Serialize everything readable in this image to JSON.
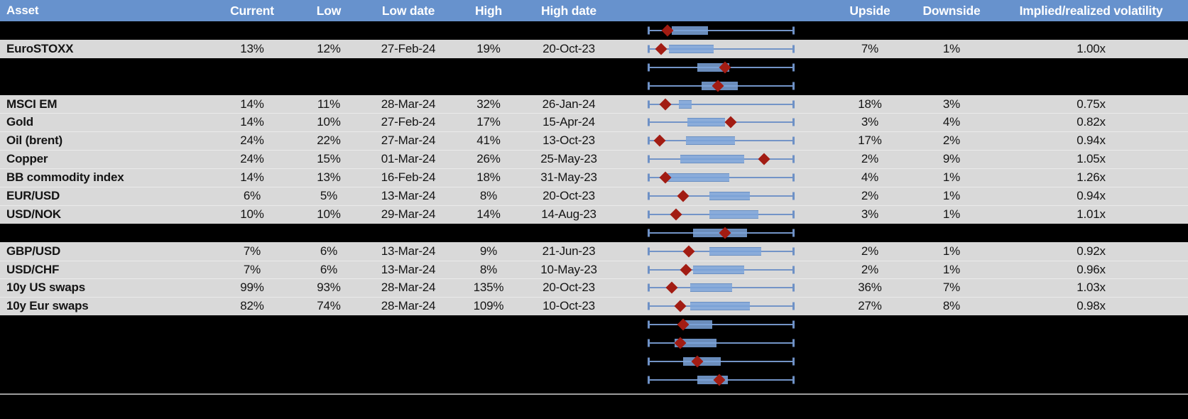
{
  "header": {
    "columns": [
      "Asset",
      "Current",
      "Low",
      "Low date",
      "High",
      "High date",
      "",
      "Upside",
      "Downside",
      "Implied/realized volatility"
    ]
  },
  "colors": {
    "header_bg": "#6792cd",
    "header_text": "#ffffff",
    "row_gray": "#d9d9d9",
    "row_black": "#000000",
    "whisker_blue": "#7394c7",
    "box_blue": "#7da4da",
    "marker_red": "#a21c13",
    "bottom_line": "#9c9c9c"
  },
  "chart_data": {
    "type": "table",
    "note": "Each row contains a horizontal box-and-whisker plot normalized to the 1-year range (whiskers always span full range 0-1); box = inner range, diamond marker = current level.",
    "plot_axis_range": [
      0,
      1
    ]
  },
  "rows": [
    {
      "type": "spacer",
      "plot": {
        "whisker_lo": 0,
        "whisker_hi": 1,
        "box_lo": 0.16,
        "box_hi": 0.41,
        "marker": 0.13
      }
    },
    {
      "type": "data",
      "asset": "EuroSTOXX",
      "current": "13%",
      "low": "12%",
      "low_date": "27-Feb-24",
      "high": "19%",
      "high_date": "20-Oct-23",
      "upside": "7%",
      "downside": "1%",
      "implied_realized": "1.00x",
      "plot": {
        "whisker_lo": 0,
        "whisker_hi": 1,
        "box_lo": 0.14,
        "box_hi": 0.45,
        "marker": 0.09
      }
    },
    {
      "type": "spacer",
      "plot": {
        "whisker_lo": 0,
        "whisker_hi": 1,
        "box_lo": 0.34,
        "box_hi": 0.56,
        "marker": 0.53
      }
    },
    {
      "type": "spacer",
      "plot": {
        "whisker_lo": 0,
        "whisker_hi": 1,
        "box_lo": 0.37,
        "box_hi": 0.62,
        "marker": 0.48
      }
    },
    {
      "type": "data",
      "asset": "MSCI EM",
      "current": "14%",
      "low": "11%",
      "low_date": "28-Mar-24",
      "high": "32%",
      "high_date": "26-Jan-24",
      "upside": "18%",
      "downside": "3%",
      "implied_realized": "0.75x",
      "plot": {
        "whisker_lo": 0,
        "whisker_hi": 1,
        "box_lo": 0.21,
        "box_hi": 0.3,
        "marker": 0.12
      }
    },
    {
      "type": "data",
      "asset": "Gold",
      "current": "14%",
      "low": "10%",
      "low_date": "27-Feb-24",
      "high": "17%",
      "high_date": "15-Apr-24",
      "upside": "3%",
      "downside": "4%",
      "implied_realized": "0.82x",
      "plot": {
        "whisker_lo": 0,
        "whisker_hi": 1,
        "box_lo": 0.27,
        "box_hi": 0.53,
        "marker": 0.57
      }
    },
    {
      "type": "data",
      "asset": "Oil (brent)",
      "current": "24%",
      "low": "22%",
      "low_date": "27-Mar-24",
      "high": "41%",
      "high_date": "13-Oct-23",
      "upside": "17%",
      "downside": "2%",
      "implied_realized": "0.94x",
      "plot": {
        "whisker_lo": 0,
        "whisker_hi": 1,
        "box_lo": 0.26,
        "box_hi": 0.6,
        "marker": 0.08
      }
    },
    {
      "type": "data",
      "asset": "Copper",
      "current": "24%",
      "low": "15%",
      "low_date": "01-Mar-24",
      "high": "26%",
      "high_date": "25-May-23",
      "upside": "2%",
      "downside": "9%",
      "implied_realized": "1.05x",
      "plot": {
        "whisker_lo": 0,
        "whisker_hi": 1,
        "box_lo": 0.22,
        "box_hi": 0.66,
        "marker": 0.8
      }
    },
    {
      "type": "data",
      "asset": "BB commodity index",
      "current": "14%",
      "low": "13%",
      "low_date": "16-Feb-24",
      "high": "18%",
      "high_date": "31-May-23",
      "upside": "4%",
      "downside": "1%",
      "implied_realized": "1.26x",
      "plot": {
        "whisker_lo": 0,
        "whisker_hi": 1,
        "box_lo": 0.13,
        "box_hi": 0.56,
        "marker": 0.12
      }
    },
    {
      "type": "data",
      "asset": "EUR/USD",
      "current": "6%",
      "low": "5%",
      "low_date": "13-Mar-24",
      "high": "8%",
      "high_date": "20-Oct-23",
      "upside": "2%",
      "downside": "1%",
      "implied_realized": "0.94x",
      "plot": {
        "whisker_lo": 0,
        "whisker_hi": 1,
        "box_lo": 0.42,
        "box_hi": 0.7,
        "marker": 0.24
      }
    },
    {
      "type": "data",
      "asset": "USD/NOK",
      "current": "10%",
      "low": "10%",
      "low_date": "29-Mar-24",
      "high": "14%",
      "high_date": "14-Aug-23",
      "upside": "3%",
      "downside": "1%",
      "implied_realized": "1.01x",
      "plot": {
        "whisker_lo": 0,
        "whisker_hi": 1,
        "box_lo": 0.42,
        "box_hi": 0.76,
        "marker": 0.19
      }
    },
    {
      "type": "spacer",
      "plot": {
        "whisker_lo": 0,
        "whisker_hi": 1,
        "box_lo": 0.31,
        "box_hi": 0.68,
        "marker": 0.53
      }
    },
    {
      "type": "data",
      "asset": "GBP/USD",
      "current": "7%",
      "low": "6%",
      "low_date": "13-Mar-24",
      "high": "9%",
      "high_date": "21-Jun-23",
      "upside": "2%",
      "downside": "1%",
      "implied_realized": "0.92x",
      "plot": {
        "whisker_lo": 0,
        "whisker_hi": 1,
        "box_lo": 0.42,
        "box_hi": 0.78,
        "marker": 0.28
      }
    },
    {
      "type": "data",
      "asset": "USD/CHF",
      "current": "7%",
      "low": "6%",
      "low_date": "13-Mar-24",
      "high": "8%",
      "high_date": "10-May-23",
      "upside": "2%",
      "downside": "1%",
      "implied_realized": "0.96x",
      "plot": {
        "whisker_lo": 0,
        "whisker_hi": 1,
        "box_lo": 0.31,
        "box_hi": 0.66,
        "marker": 0.26
      }
    },
    {
      "type": "data",
      "asset": "10y US swaps",
      "current": "99%",
      "low": "93%",
      "low_date": "28-Mar-24",
      "high": "135%",
      "high_date": "20-Oct-23",
      "upside": "36%",
      "downside": "7%",
      "implied_realized": "1.03x",
      "plot": {
        "whisker_lo": 0,
        "whisker_hi": 1,
        "box_lo": 0.29,
        "box_hi": 0.58,
        "marker": 0.16
      }
    },
    {
      "type": "data",
      "asset": "10y Eur swaps",
      "current": "82%",
      "low": "74%",
      "low_date": "28-Mar-24",
      "high": "109%",
      "high_date": "10-Oct-23",
      "upside": "27%",
      "downside": "8%",
      "implied_realized": "0.98x",
      "plot": {
        "whisker_lo": 0,
        "whisker_hi": 1,
        "box_lo": 0.29,
        "box_hi": 0.7,
        "marker": 0.22
      }
    },
    {
      "type": "spacer",
      "plot": {
        "whisker_lo": 0,
        "whisker_hi": 1,
        "box_lo": 0.24,
        "box_hi": 0.44,
        "marker": 0.24
      }
    },
    {
      "type": "spacer",
      "plot": {
        "whisker_lo": 0,
        "whisker_hi": 1,
        "box_lo": 0.18,
        "box_hi": 0.47,
        "marker": 0.22
      }
    },
    {
      "type": "spacer",
      "plot": {
        "whisker_lo": 0,
        "whisker_hi": 1,
        "box_lo": 0.24,
        "box_hi": 0.5,
        "marker": 0.34
      }
    },
    {
      "type": "spacer",
      "plot": {
        "whisker_lo": 0,
        "whisker_hi": 1,
        "box_lo": 0.34,
        "box_hi": 0.55,
        "marker": 0.49
      }
    }
  ]
}
